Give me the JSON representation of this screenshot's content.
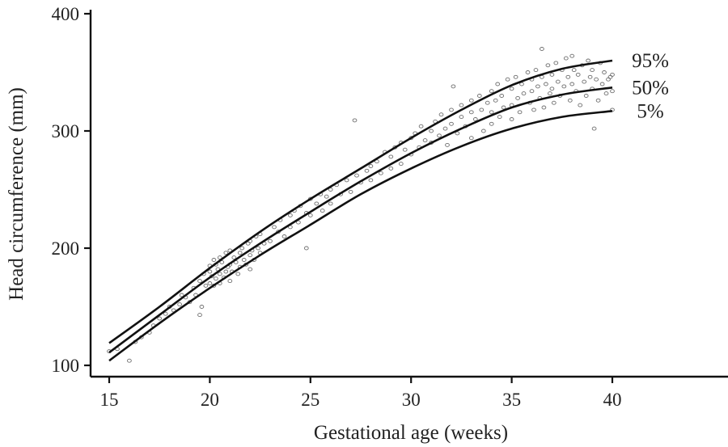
{
  "chart_data": {
    "type": "scatter",
    "title": "",
    "xlabel": "Gestational age (weeks)",
    "ylabel": "Head circumference (mm)",
    "xlim": [
      15,
      40
    ],
    "ylim": [
      100,
      400
    ],
    "xticks": [
      "15",
      "20",
      "25",
      "30",
      "35",
      "40"
    ],
    "yticks": [
      "100",
      "200",
      "300",
      "400"
    ],
    "grid": false,
    "series": [
      {
        "name": "95%",
        "x": [
          15,
          17.5,
          20,
          22.5,
          25,
          27.5,
          30,
          32.5,
          35,
          37.5,
          40
        ],
        "y": [
          119,
          150,
          183,
          214,
          242,
          268,
          294,
          318,
          339,
          353,
          360
        ]
      },
      {
        "name": "50%",
        "x": [
          15,
          17.5,
          20,
          22.5,
          25,
          27.5,
          30,
          32.5,
          35,
          37.5,
          40
        ],
        "y": [
          111,
          143,
          175,
          204,
          231,
          257,
          281,
          302,
          320,
          331,
          337
        ]
      },
      {
        "name": "5%",
        "x": [
          15,
          17.5,
          20,
          22.5,
          25,
          27.5,
          30,
          32.5,
          35,
          37.5,
          40
        ],
        "y": [
          104,
          136,
          166,
          194,
          220,
          246,
          268,
          287,
          302,
          312,
          317
        ]
      }
    ],
    "scatter_points": [
      [
        15.0,
        112
      ],
      [
        15.4,
        114
      ],
      [
        16.0,
        104
      ],
      [
        16.3,
        120
      ],
      [
        16.6,
        124
      ],
      [
        17.0,
        128
      ],
      [
        17.2,
        134
      ],
      [
        17.5,
        140
      ],
      [
        17.8,
        144
      ],
      [
        18.0,
        150
      ],
      [
        18.2,
        147
      ],
      [
        18.5,
        152
      ],
      [
        18.6,
        160
      ],
      [
        18.8,
        158
      ],
      [
        19.0,
        154
      ],
      [
        19.2,
        166
      ],
      [
        19.3,
        160
      ],
      [
        19.5,
        172
      ],
      [
        19.5,
        143
      ],
      [
        19.6,
        150
      ],
      [
        19.7,
        178
      ],
      [
        19.8,
        168
      ],
      [
        20.0,
        170
      ],
      [
        20.0,
        180
      ],
      [
        20.0,
        185
      ],
      [
        20.1,
        176
      ],
      [
        20.2,
        190
      ],
      [
        20.2,
        168
      ],
      [
        20.3,
        174
      ],
      [
        20.3,
        186
      ],
      [
        20.4,
        182
      ],
      [
        20.5,
        178
      ],
      [
        20.5,
        192
      ],
      [
        20.5,
        170
      ],
      [
        20.6,
        188
      ],
      [
        20.7,
        175
      ],
      [
        20.8,
        180
      ],
      [
        20.8,
        196
      ],
      [
        20.9,
        184
      ],
      [
        21.0,
        186
      ],
      [
        21.0,
        172
      ],
      [
        21.0,
        198
      ],
      [
        21.1,
        180
      ],
      [
        21.2,
        192
      ],
      [
        21.3,
        188
      ],
      [
        21.4,
        178
      ],
      [
        21.5,
        196
      ],
      [
        21.5,
        184
      ],
      [
        21.6,
        200
      ],
      [
        21.7,
        190
      ],
      [
        21.8,
        186
      ],
      [
        21.9,
        204
      ],
      [
        22.0,
        194
      ],
      [
        22.0,
        182
      ],
      [
        22.0,
        206
      ],
      [
        22.1,
        198
      ],
      [
        22.2,
        190
      ],
      [
        22.3,
        210
      ],
      [
        22.4,
        200
      ],
      [
        22.5,
        196
      ],
      [
        22.5,
        212
      ],
      [
        22.7,
        204
      ],
      [
        23.0,
        206
      ],
      [
        23.2,
        218
      ],
      [
        23.4,
        214
      ],
      [
        23.5,
        224
      ],
      [
        23.7,
        210
      ],
      [
        24.0,
        228
      ],
      [
        24.0,
        218
      ],
      [
        24.2,
        232
      ],
      [
        24.4,
        222
      ],
      [
        24.5,
        236
      ],
      [
        24.8,
        200
      ],
      [
        24.8,
        230
      ],
      [
        25.0,
        242
      ],
      [
        25.0,
        228
      ],
      [
        25.3,
        238
      ],
      [
        25.5,
        246
      ],
      [
        25.6,
        232
      ],
      [
        25.8,
        244
      ],
      [
        26.0,
        250
      ],
      [
        26.0,
        238
      ],
      [
        26.3,
        254
      ],
      [
        26.5,
        246
      ],
      [
        26.8,
        258
      ],
      [
        27.0,
        248
      ],
      [
        27.2,
        309
      ],
      [
        27.3,
        262
      ],
      [
        27.5,
        256
      ],
      [
        27.8,
        266
      ],
      [
        28.0,
        270
      ],
      [
        28.0,
        258
      ],
      [
        28.3,
        274
      ],
      [
        28.5,
        264
      ],
      [
        28.7,
        282
      ],
      [
        29.0,
        278
      ],
      [
        29.0,
        268
      ],
      [
        29.2,
        286
      ],
      [
        29.5,
        290
      ],
      [
        29.5,
        272
      ],
      [
        29.7,
        284
      ],
      [
        30.0,
        294
      ],
      [
        30.0,
        280
      ],
      [
        30.2,
        298
      ],
      [
        30.4,
        286
      ],
      [
        30.5,
        304
      ],
      [
        30.7,
        292
      ],
      [
        31.0,
        300
      ],
      [
        31.0,
        290
      ],
      [
        31.2,
        308
      ],
      [
        31.4,
        296
      ],
      [
        31.5,
        314
      ],
      [
        31.7,
        302
      ],
      [
        31.8,
        288
      ],
      [
        32.0,
        318
      ],
      [
        32.0,
        306
      ],
      [
        32.1,
        338
      ],
      [
        32.3,
        298
      ],
      [
        32.5,
        312
      ],
      [
        32.5,
        322
      ],
      [
        32.7,
        304
      ],
      [
        33.0,
        316
      ],
      [
        33.0,
        326
      ],
      [
        33.0,
        294
      ],
      [
        33.2,
        310
      ],
      [
        33.4,
        330
      ],
      [
        33.5,
        318
      ],
      [
        33.6,
        300
      ],
      [
        33.8,
        324
      ],
      [
        34.0,
        334
      ],
      [
        34.0,
        316
      ],
      [
        34.0,
        306
      ],
      [
        34.2,
        326
      ],
      [
        34.3,
        340
      ],
      [
        34.4,
        312
      ],
      [
        34.5,
        330
      ],
      [
        34.6,
        320
      ],
      [
        34.8,
        344
      ],
      [
        35.0,
        336
      ],
      [
        35.0,
        322
      ],
      [
        35.0,
        310
      ],
      [
        35.2,
        346
      ],
      [
        35.3,
        328
      ],
      [
        35.4,
        316
      ],
      [
        35.5,
        340
      ],
      [
        35.6,
        332
      ],
      [
        35.8,
        350
      ],
      [
        35.9,
        324
      ],
      [
        36.0,
        344
      ],
      [
        36.0,
        334
      ],
      [
        36.1,
        318
      ],
      [
        36.2,
        352
      ],
      [
        36.3,
        338
      ],
      [
        36.4,
        328
      ],
      [
        36.5,
        370
      ],
      [
        36.5,
        346
      ],
      [
        36.6,
        320
      ],
      [
        36.7,
        340
      ],
      [
        36.8,
        356
      ],
      [
        36.9,
        332
      ],
      [
        37.0,
        348
      ],
      [
        37.0,
        336
      ],
      [
        37.1,
        324
      ],
      [
        37.2,
        358
      ],
      [
        37.3,
        342
      ],
      [
        37.4,
        330
      ],
      [
        37.5,
        352
      ],
      [
        37.6,
        338
      ],
      [
        37.7,
        362
      ],
      [
        37.8,
        346
      ],
      [
        37.9,
        326
      ],
      [
        38.0,
        364
      ],
      [
        38.0,
        340
      ],
      [
        38.1,
        352
      ],
      [
        38.2,
        334
      ],
      [
        38.3,
        348
      ],
      [
        38.4,
        322
      ],
      [
        38.5,
        356
      ],
      [
        38.6,
        342
      ],
      [
        38.7,
        330
      ],
      [
        38.8,
        360
      ],
      [
        38.9,
        346
      ],
      [
        39.0,
        336
      ],
      [
        39.0,
        352
      ],
      [
        39.1,
        302
      ],
      [
        39.2,
        344
      ],
      [
        39.3,
        326
      ],
      [
        39.4,
        358
      ],
      [
        39.5,
        340
      ],
      [
        39.6,
        350
      ],
      [
        39.7,
        332
      ],
      [
        39.8,
        344
      ],
      [
        39.9,
        346
      ],
      [
        40.0,
        334
      ],
      [
        40.0,
        318
      ],
      [
        40.0,
        348
      ]
    ]
  }
}
